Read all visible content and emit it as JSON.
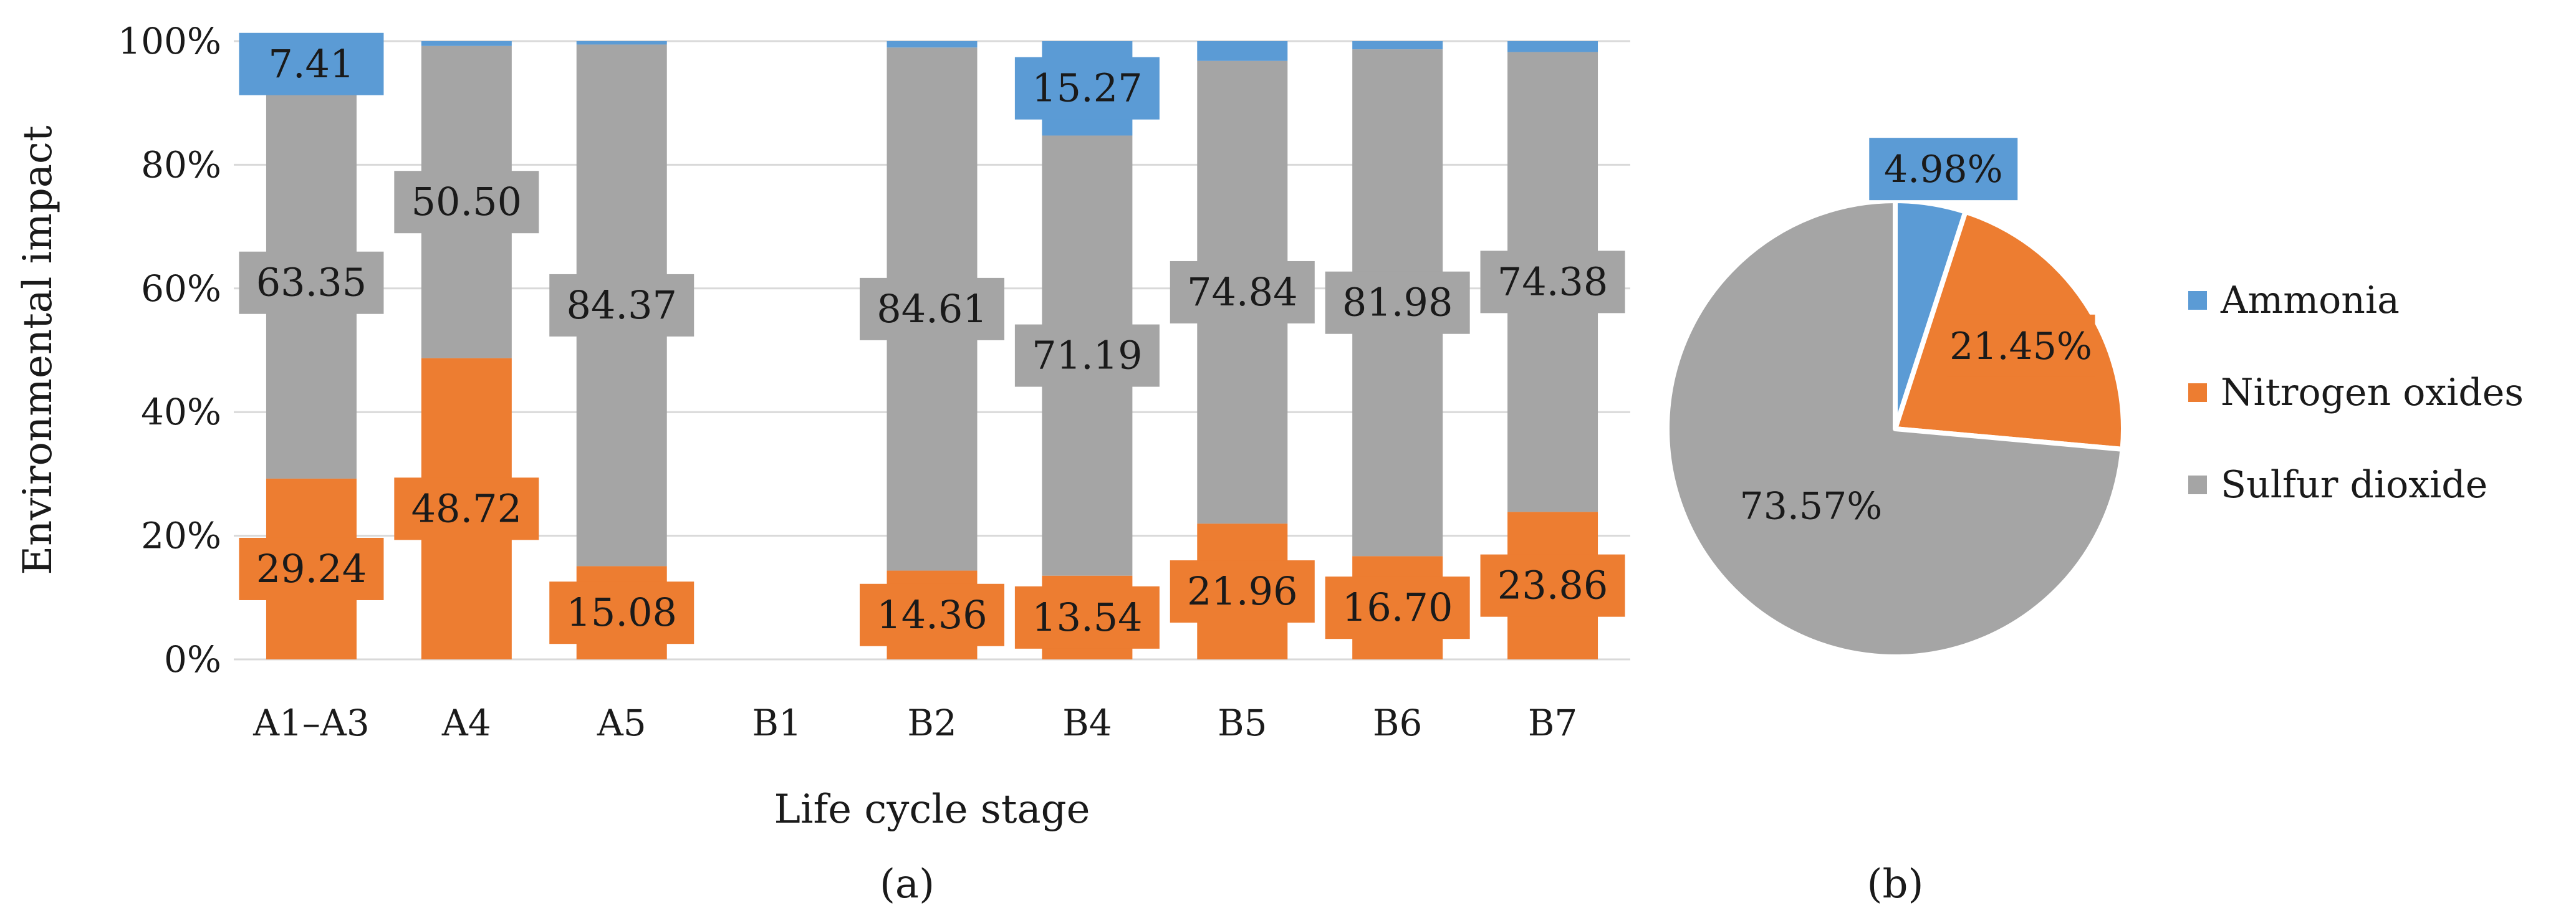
{
  "chart_data": [
    {
      "type": "bar",
      "stacked": true,
      "normalized": true,
      "xlabel": "Life cycle stage",
      "ylabel": "Environmental impact",
      "caption": "(a)",
      "categories": [
        "A1–A3",
        "A4",
        "A5",
        "B1",
        "B2",
        "B4",
        "B5",
        "B6",
        "B7"
      ],
      "ylim": [
        0,
        100
      ],
      "yticks": [
        "0%",
        "20%",
        "40%",
        "60%",
        "80%",
        "100%"
      ],
      "grid": true,
      "series": [
        {
          "name": "Nitrogen oxides",
          "color": "#ED7D31",
          "values": [
            29.24,
            48.72,
            15.08,
            null,
            14.36,
            13.54,
            21.96,
            16.7,
            23.86
          ],
          "labels": [
            "29.24",
            "48.72",
            "15.08",
            "",
            "14.36",
            "13.54",
            "21.96",
            "16.70",
            "23.86"
          ]
        },
        {
          "name": "Sulfur dioxide",
          "color": "#A5A5A5",
          "values": [
            63.35,
            50.5,
            84.37,
            null,
            84.61,
            71.19,
            74.84,
            81.98,
            74.38
          ],
          "labels": [
            "63.35",
            "50.50",
            "84.37",
            "",
            "84.61",
            "71.19",
            "74.84",
            "81.98",
            "74.38"
          ]
        },
        {
          "name": "Ammonia",
          "color": "#5B9BD5",
          "values": [
            7.41,
            0.78,
            0.55,
            null,
            1.03,
            15.27,
            3.2,
            1.32,
            1.76
          ],
          "labels": [
            "7.41",
            "",
            "",
            "",
            "",
            "15.27",
            "",
            "",
            ""
          ]
        }
      ]
    },
    {
      "type": "pie",
      "caption": "(b)",
      "slices": [
        {
          "name": "Ammonia",
          "value": 4.98,
          "label": "4.98%",
          "color": "#5B9BD5"
        },
        {
          "name": "Nitrogen oxides",
          "value": 21.45,
          "label": "21.45%",
          "color": "#ED7D31"
        },
        {
          "name": "Sulfur dioxide",
          "value": 73.57,
          "label": "73.57%",
          "color": "#A5A5A5"
        }
      ],
      "legend": {
        "position": "right",
        "entries": [
          "Ammonia",
          "Nitrogen oxides",
          "Sulfur dioxide"
        ]
      }
    }
  ]
}
